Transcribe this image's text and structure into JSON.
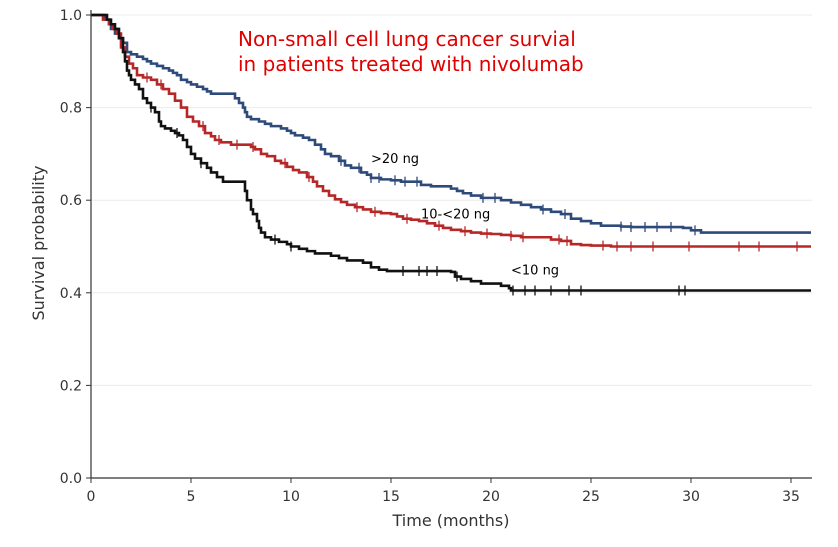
{
  "chart_data": {
    "type": "line",
    "step": true,
    "title_lines": [
      "Non-small cell lung cancer survial",
      "in patients treated with nivolumab"
    ],
    "title_color": "#e00000",
    "xlabel": "Time (months)",
    "ylabel": "Survival probability",
    "xlim": [
      0,
      36
    ],
    "ylim": [
      0,
      1.0
    ],
    "xticks": [
      0,
      5,
      10,
      15,
      20,
      25,
      30,
      35
    ],
    "yticks": [
      0.0,
      0.2,
      0.4,
      0.6,
      0.8,
      1.0
    ],
    "xtick_labels": [
      "0",
      "5",
      "10",
      "15",
      "20",
      "25",
      "30",
      "35"
    ],
    "ytick_labels": [
      "0.0",
      "0.2",
      "0.4",
      "0.6",
      "0.8",
      "1.0"
    ],
    "grid": "horizontal",
    "series": [
      {
        "name": ">20 ng",
        "color": "#2e4a7a",
        "label_at": [
          14,
          0.68
        ],
        "points": [
          [
            0,
            1.0
          ],
          [
            0.7,
            0.99
          ],
          [
            0.9,
            0.98
          ],
          [
            1.0,
            0.97
          ],
          [
            1.2,
            0.96
          ],
          [
            1.4,
            0.95
          ],
          [
            1.6,
            0.94
          ],
          [
            1.8,
            0.92
          ],
          [
            2.0,
            0.915
          ],
          [
            2.3,
            0.91
          ],
          [
            2.6,
            0.905
          ],
          [
            2.8,
            0.9
          ],
          [
            3.0,
            0.895
          ],
          [
            3.3,
            0.89
          ],
          [
            3.6,
            0.885
          ],
          [
            3.9,
            0.88
          ],
          [
            4.1,
            0.875
          ],
          [
            4.3,
            0.87
          ],
          [
            4.5,
            0.86
          ],
          [
            4.8,
            0.855
          ],
          [
            5.0,
            0.85
          ],
          [
            5.3,
            0.845
          ],
          [
            5.6,
            0.84
          ],
          [
            5.8,
            0.835
          ],
          [
            6.0,
            0.83
          ],
          [
            6.5,
            0.83
          ],
          [
            7.0,
            0.83
          ],
          [
            7.2,
            0.82
          ],
          [
            7.4,
            0.81
          ],
          [
            7.6,
            0.8
          ],
          [
            7.7,
            0.79
          ],
          [
            7.8,
            0.78
          ],
          [
            8.0,
            0.775
          ],
          [
            8.4,
            0.77
          ],
          [
            8.7,
            0.765
          ],
          [
            9.0,
            0.76
          ],
          [
            9.5,
            0.755
          ],
          [
            9.8,
            0.75
          ],
          [
            10.0,
            0.745
          ],
          [
            10.2,
            0.74
          ],
          [
            10.6,
            0.735
          ],
          [
            10.9,
            0.73
          ],
          [
            11.2,
            0.72
          ],
          [
            11.5,
            0.71
          ],
          [
            11.7,
            0.7
          ],
          [
            12.0,
            0.695
          ],
          [
            12.4,
            0.685
          ],
          [
            12.7,
            0.675
          ],
          [
            13.0,
            0.67
          ],
          [
            13.5,
            0.66
          ],
          [
            13.8,
            0.655
          ],
          [
            14.0,
            0.648
          ],
          [
            14.5,
            0.645
          ],
          [
            15.0,
            0.643
          ],
          [
            15.5,
            0.64
          ],
          [
            16.2,
            0.64
          ],
          [
            16.5,
            0.633
          ],
          [
            17.0,
            0.63
          ],
          [
            17.5,
            0.63
          ],
          [
            18.0,
            0.625
          ],
          [
            18.3,
            0.62
          ],
          [
            18.6,
            0.615
          ],
          [
            19.0,
            0.61
          ],
          [
            19.5,
            0.605
          ],
          [
            20.0,
            0.605
          ],
          [
            20.5,
            0.6
          ],
          [
            21.0,
            0.595
          ],
          [
            21.5,
            0.59
          ],
          [
            22.0,
            0.585
          ],
          [
            22.5,
            0.58
          ],
          [
            23.0,
            0.575
          ],
          [
            23.5,
            0.57
          ],
          [
            24.0,
            0.56
          ],
          [
            24.5,
            0.555
          ],
          [
            25.0,
            0.55
          ],
          [
            25.5,
            0.545
          ],
          [
            26.0,
            0.545
          ],
          [
            26.5,
            0.543
          ],
          [
            27.0,
            0.542
          ],
          [
            28.0,
            0.542
          ],
          [
            29.0,
            0.542
          ],
          [
            29.6,
            0.54
          ],
          [
            30.0,
            0.535
          ],
          [
            30.5,
            0.53
          ],
          [
            31.0,
            0.53
          ],
          [
            36.0,
            0.53
          ]
        ],
        "censor": [
          12.5,
          13.4,
          14.0,
          14.4,
          15.2,
          15.7,
          16.3,
          19.6,
          20.2,
          22.6,
          23.7,
          26.5,
          27.0,
          27.7,
          28.3,
          29.0,
          30.2
        ]
      },
      {
        "name": "10-<20 ng",
        "color": "#b62828",
        "label_at": [
          16.5,
          0.56
        ],
        "points": [
          [
            0,
            1.0
          ],
          [
            0.6,
            0.99
          ],
          [
            0.9,
            0.98
          ],
          [
            1.1,
            0.97
          ],
          [
            1.3,
            0.96
          ],
          [
            1.5,
            0.93
          ],
          [
            1.7,
            0.91
          ],
          [
            1.9,
            0.895
          ],
          [
            2.1,
            0.885
          ],
          [
            2.3,
            0.87
          ],
          [
            2.6,
            0.865
          ],
          [
            3.0,
            0.86
          ],
          [
            3.3,
            0.85
          ],
          [
            3.6,
            0.84
          ],
          [
            3.9,
            0.83
          ],
          [
            4.2,
            0.815
          ],
          [
            4.5,
            0.8
          ],
          [
            4.8,
            0.78
          ],
          [
            5.1,
            0.77
          ],
          [
            5.4,
            0.76
          ],
          [
            5.7,
            0.745
          ],
          [
            6.0,
            0.738
          ],
          [
            6.2,
            0.73
          ],
          [
            6.5,
            0.725
          ],
          [
            7.0,
            0.72
          ],
          [
            7.5,
            0.72
          ],
          [
            8.0,
            0.715
          ],
          [
            8.2,
            0.71
          ],
          [
            8.5,
            0.7
          ],
          [
            8.8,
            0.695
          ],
          [
            9.2,
            0.685
          ],
          [
            9.5,
            0.68
          ],
          [
            9.8,
            0.672
          ],
          [
            10.1,
            0.665
          ],
          [
            10.4,
            0.66
          ],
          [
            10.8,
            0.65
          ],
          [
            11.1,
            0.64
          ],
          [
            11.3,
            0.63
          ],
          [
            11.6,
            0.62
          ],
          [
            11.9,
            0.61
          ],
          [
            12.2,
            0.602
          ],
          [
            12.5,
            0.596
          ],
          [
            12.8,
            0.59
          ],
          [
            13.2,
            0.585
          ],
          [
            13.6,
            0.58
          ],
          [
            14.0,
            0.575
          ],
          [
            14.5,
            0.572
          ],
          [
            15.0,
            0.57
          ],
          [
            15.3,
            0.565
          ],
          [
            15.6,
            0.56
          ],
          [
            16.0,
            0.558
          ],
          [
            16.4,
            0.555
          ],
          [
            16.8,
            0.55
          ],
          [
            17.2,
            0.545
          ],
          [
            17.6,
            0.54
          ],
          [
            18.0,
            0.536
          ],
          [
            18.5,
            0.533
          ],
          [
            19.0,
            0.53
          ],
          [
            19.5,
            0.528
          ],
          [
            20.0,
            0.527
          ],
          [
            20.5,
            0.525
          ],
          [
            21.0,
            0.523
          ],
          [
            21.5,
            0.52
          ],
          [
            22.0,
            0.52
          ],
          [
            22.5,
            0.52
          ],
          [
            23.0,
            0.515
          ],
          [
            23.5,
            0.512
          ],
          [
            24.0,
            0.505
          ],
          [
            24.5,
            0.503
          ],
          [
            25.0,
            0.502
          ],
          [
            26.0,
            0.5
          ],
          [
            27.0,
            0.5
          ],
          [
            28.0,
            0.5
          ],
          [
            29.0,
            0.5
          ],
          [
            30.0,
            0.5
          ],
          [
            36.0,
            0.5
          ]
        ],
        "censor": [
          2.8,
          3.5,
          5.6,
          6.4,
          7.3,
          8.1,
          9.7,
          10.9,
          13.3,
          14.2,
          15.8,
          17.4,
          18.7,
          19.8,
          21.0,
          21.6,
          23.4,
          23.8,
          25.6,
          26.3,
          27.0,
          28.1,
          29.9,
          32.4,
          33.4,
          35.3
        ]
      },
      {
        "name": "<10 ng",
        "color": "#111111",
        "label_at": [
          21.0,
          0.44
        ],
        "points": [
          [
            0,
            1.0
          ],
          [
            0.6,
            1.0
          ],
          [
            0.8,
            0.99
          ],
          [
            1.0,
            0.98
          ],
          [
            1.2,
            0.97
          ],
          [
            1.4,
            0.95
          ],
          [
            1.6,
            0.92
          ],
          [
            1.7,
            0.9
          ],
          [
            1.8,
            0.88
          ],
          [
            1.9,
            0.87
          ],
          [
            2.0,
            0.86
          ],
          [
            2.2,
            0.85
          ],
          [
            2.4,
            0.84
          ],
          [
            2.6,
            0.82
          ],
          [
            2.8,
            0.81
          ],
          [
            3.0,
            0.8
          ],
          [
            3.2,
            0.79
          ],
          [
            3.4,
            0.77
          ],
          [
            3.5,
            0.76
          ],
          [
            3.7,
            0.755
          ],
          [
            4.0,
            0.75
          ],
          [
            4.2,
            0.745
          ],
          [
            4.4,
            0.74
          ],
          [
            4.6,
            0.73
          ],
          [
            4.8,
            0.715
          ],
          [
            5.0,
            0.7
          ],
          [
            5.2,
            0.69
          ],
          [
            5.5,
            0.68
          ],
          [
            5.8,
            0.67
          ],
          [
            6.0,
            0.66
          ],
          [
            6.3,
            0.65
          ],
          [
            6.6,
            0.64
          ],
          [
            7.0,
            0.64
          ],
          [
            7.5,
            0.64
          ],
          [
            7.7,
            0.62
          ],
          [
            7.8,
            0.6
          ],
          [
            8.0,
            0.58
          ],
          [
            8.1,
            0.57
          ],
          [
            8.3,
            0.555
          ],
          [
            8.4,
            0.54
          ],
          [
            8.5,
            0.53
          ],
          [
            8.7,
            0.52
          ],
          [
            9.0,
            0.515
          ],
          [
            9.4,
            0.51
          ],
          [
            9.8,
            0.505
          ],
          [
            10.0,
            0.5
          ],
          [
            10.4,
            0.495
          ],
          [
            10.8,
            0.49
          ],
          [
            11.2,
            0.485
          ],
          [
            11.6,
            0.485
          ],
          [
            12.0,
            0.48
          ],
          [
            12.4,
            0.475
          ],
          [
            12.8,
            0.47
          ],
          [
            13.2,
            0.47
          ],
          [
            13.6,
            0.465
          ],
          [
            14.0,
            0.455
          ],
          [
            14.4,
            0.45
          ],
          [
            14.8,
            0.447
          ],
          [
            15.2,
            0.447
          ],
          [
            16.0,
            0.447
          ],
          [
            17.0,
            0.447
          ],
          [
            17.5,
            0.447
          ],
          [
            18.0,
            0.445
          ],
          [
            18.2,
            0.435
          ],
          [
            18.5,
            0.43
          ],
          [
            19.0,
            0.425
          ],
          [
            19.5,
            0.42
          ],
          [
            20.0,
            0.42
          ],
          [
            20.5,
            0.415
          ],
          [
            20.9,
            0.41
          ],
          [
            21.0,
            0.405
          ],
          [
            21.5,
            0.405
          ],
          [
            22.0,
            0.405
          ],
          [
            23.0,
            0.405
          ],
          [
            24.0,
            0.405
          ],
          [
            25.0,
            0.405
          ],
          [
            27.0,
            0.405
          ],
          [
            29.0,
            0.405
          ],
          [
            30.0,
            0.405
          ],
          [
            36.0,
            0.405
          ]
        ],
        "censor": [
          3.0,
          4.3,
          5.5,
          9.2,
          10.0,
          15.6,
          16.4,
          16.8,
          17.3,
          18.3,
          21.1,
          21.7,
          22.2,
          23.0,
          23.9,
          24.5,
          29.4,
          29.7
        ]
      }
    ]
  }
}
